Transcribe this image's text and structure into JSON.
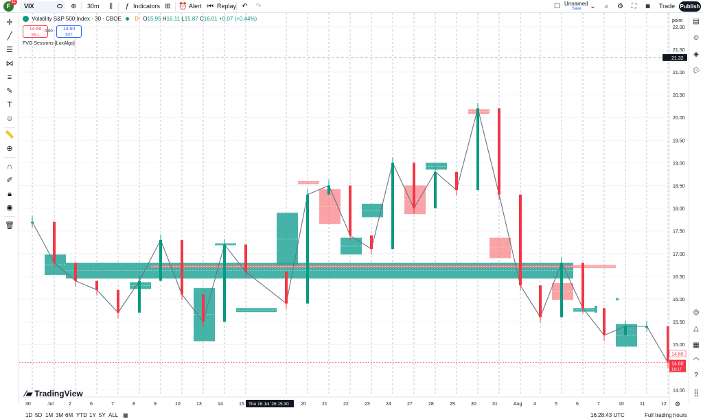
{
  "header": {
    "avatar_letter": "F",
    "notification_count": "11",
    "symbol": "VIX",
    "interval": "30m",
    "indicators_label": "Indicators",
    "alert_label": "Alert",
    "replay_label": "Replay",
    "layout_name": "Unnamed",
    "layout_save": "Save",
    "trade_label": "Trade",
    "publish_label": "Publish"
  },
  "legend": {
    "title": "Volatility S&P 500 Index · 30 · CBOE",
    "d_marker": "D",
    "o_label": "O",
    "o_value": "15.95",
    "h_label": "H",
    "h_value": "16.11",
    "l_label": "L",
    "l_value": "15.87",
    "c_label": "C",
    "c_value": "16.01",
    "change": "+0.07 (+0.44%)",
    "sell_price": "14.60",
    "sell_label": "SELL",
    "buy_price": "14.60",
    "buy_label": "BUY",
    "spread": "0.00",
    "indicator_name": "FVG Sessions [LuxAlgo]"
  },
  "price_scale": {
    "unit_label": "point",
    "ticks": [
      "22.00",
      "21.50",
      "21.00",
      "20.50",
      "20.00",
      "19.50",
      "19.00",
      "18.50",
      "18.00",
      "17.50",
      "17.00",
      "16.50",
      "16.00",
      "15.50",
      "15.00",
      "14.50",
      "14.00"
    ],
    "crosshair_price": "21.32",
    "last_price": "14.60",
    "last_countdown": "16:17",
    "prev_close": "14.80"
  },
  "time_scale": {
    "labels": [
      "30",
      "Jul",
      "2",
      "6",
      "7",
      "8",
      "9",
      "10",
      "13",
      "14",
      "15",
      "20",
      "21",
      "22",
      "23",
      "24",
      "27",
      "28",
      "29",
      "30",
      "31",
      "Aug",
      "4",
      "5",
      "6",
      "7",
      "10",
      "11",
      "12"
    ],
    "crosshair_label": "Thu 16 Jul '26   15:30"
  },
  "bottom": {
    "ranges": [
      "1D",
      "5D",
      "1M",
      "3M",
      "6M",
      "YTD",
      "1Y",
      "5Y",
      "ALL"
    ],
    "clock": "16:28:43 UTC",
    "session": "Full trading hours"
  },
  "branding": "TradingView",
  "colors": {
    "bull": "#089981",
    "bear": "#f23645",
    "bull_box": "#26a69a",
    "bear_box": "#f77c80",
    "accent": "#2962ff"
  },
  "chart_data": {
    "type": "line",
    "series": [
      {
        "x": [
          "30",
          "Jul",
          "2",
          "6",
          "7",
          "8",
          "9",
          "10",
          "13",
          "14",
          "15",
          "16",
          "20",
          "21",
          "22",
          "23",
          "24",
          "27",
          "28",
          "29",
          "30",
          "31",
          "Aug",
          "4",
          "5",
          "6",
          "7",
          "10",
          "11",
          "12"
        ],
        "values": [
          17.7,
          16.8,
          16.4,
          16.2,
          15.7,
          16.4,
          17.3,
          16.1,
          15.5,
          17.2,
          16.6,
          15.9,
          18.3,
          18.5,
          17.4,
          17.1,
          19.0,
          18.0,
          18.8,
          18.4,
          20.2,
          18.3,
          16.3,
          15.6,
          16.8,
          15.8,
          15.2,
          15.4,
          15.4,
          14.6
        ]
      }
    ],
    "ylim": [
      13.9,
      22.3
    ],
    "fvg_boxes": [
      {
        "x0": "Jul",
        "x1": "2",
        "top": 16.98,
        "bottom": 16.53,
        "kind": "bull"
      },
      {
        "x0": "2",
        "x1": "6",
        "top": 16.8,
        "bottom": 16.45,
        "kind": "bull"
      },
      {
        "x0": "7",
        "x1": "8",
        "top": 15.85,
        "bottom": 15.7,
        "kind": "bull"
      },
      {
        "x0": "8",
        "x1": "9",
        "top": 16.37,
        "bottom": 16.22,
        "kind": "bull"
      },
      {
        "x0": "9",
        "x1": "10",
        "top": 16.75,
        "bottom": 16.68,
        "kind": "bear"
      },
      {
        "x0": "10",
        "x1": "13",
        "top": 16.02,
        "bottom": 15.97,
        "kind": "bull"
      },
      {
        "x0": "13",
        "x1": "14",
        "top": 16.24,
        "bottom": 15.07,
        "kind": "bull"
      },
      {
        "x0": "14",
        "x1": "15",
        "top": 17.23,
        "bottom": 17.2,
        "kind": "bull"
      },
      {
        "x0": "15",
        "x1": "16",
        "top": 15.8,
        "bottom": 15.71,
        "kind": "bull"
      },
      {
        "x0": "16",
        "x1": "20",
        "top": 17.9,
        "bottom": 16.75,
        "kind": "bull"
      },
      {
        "x0": "20",
        "x1": "21",
        "top": 18.6,
        "bottom": 18.53,
        "kind": "bear"
      },
      {
        "x0": "21",
        "x1": "22",
        "top": 18.42,
        "bottom": 17.65,
        "kind": "bear"
      },
      {
        "x0": "22",
        "x1": "23",
        "top": 17.35,
        "bottom": 16.98,
        "kind": "bull"
      },
      {
        "x0": "23",
        "x1": "24",
        "top": 18.1,
        "bottom": 17.8,
        "kind": "bull"
      },
      {
        "x0": "27",
        "x1": "28",
        "top": 18.5,
        "bottom": 17.87,
        "kind": "bear"
      },
      {
        "x0": "28",
        "x1": "29",
        "top": 19.0,
        "bottom": 18.85,
        "kind": "bull"
      },
      {
        "x0": "30",
        "x1": "31",
        "top": 20.18,
        "bottom": 20.08,
        "kind": "bear"
      },
      {
        "x0": "31",
        "x1": "Aug",
        "top": 17.35,
        "bottom": 16.9,
        "kind": "bear"
      },
      {
        "x0": "5",
        "x1": "6",
        "top": 16.35,
        "bottom": 15.98,
        "kind": "bear"
      },
      {
        "x0": "6",
        "x1": "7",
        "top": 15.8,
        "bottom": 15.72,
        "kind": "bull"
      },
      {
        "x0": "10",
        "x1": "11",
        "top": 15.45,
        "bottom": 14.95,
        "kind": "bull"
      }
    ]
  }
}
